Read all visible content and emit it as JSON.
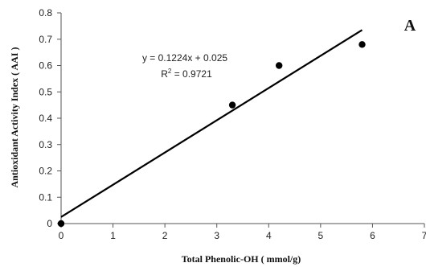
{
  "chart_data": {
    "type": "scatter",
    "panel_label": "A",
    "xlabel": "Total Phenolic-OH ( mmol/g)",
    "ylabel": "Antioxidant Activity Index ( AAI )",
    "xlim": [
      0,
      7
    ],
    "ylim": [
      0,
      0.8
    ],
    "x_ticks": [
      0,
      1,
      2,
      3,
      4,
      5,
      6,
      7
    ],
    "y_ticks": [
      0,
      0.1,
      0.2,
      0.3,
      0.4,
      0.5,
      0.6,
      0.7,
      0.8
    ],
    "x_tick_labels": [
      "0",
      "1",
      "2",
      "3",
      "4",
      "5",
      "6",
      "7"
    ],
    "y_tick_labels": [
      "0",
      "0.1",
      "0.2",
      "0.3",
      "0.4",
      "0.5",
      "0.6",
      "0.7",
      "0.8"
    ],
    "points": [
      {
        "x": 0,
        "y": 0
      },
      {
        "x": 3.3,
        "y": 0.45
      },
      {
        "x": 4.2,
        "y": 0.6
      },
      {
        "x": 5.8,
        "y": 0.68
      }
    ],
    "trendline": {
      "slope": 0.1224,
      "intercept": 0.025,
      "x_range": [
        0,
        5.8
      ]
    },
    "equation": "y = 0.1224x + 0.025",
    "r2_prefix": "R",
    "r2_sup": "2",
    "r2_suffix": " = 0.9721",
    "grid": false,
    "colors": {
      "marker": "#000000",
      "line": "#000000",
      "axis": "#555555"
    }
  }
}
